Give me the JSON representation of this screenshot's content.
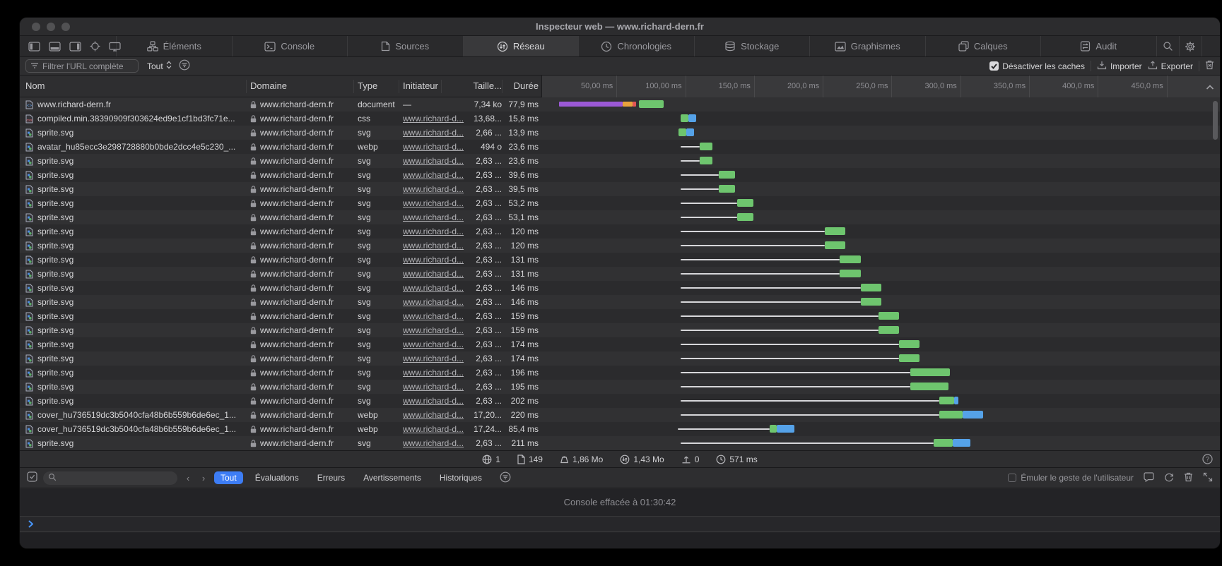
{
  "window": {
    "title": "Inspecteur web — www.richard-dern.fr"
  },
  "toolbar": {
    "layout_icons": [
      "pane-left",
      "pane-bottom",
      "pane-right",
      "crosshair",
      "monitor"
    ],
    "tabs": [
      {
        "label": "Éléments",
        "icon": "elements",
        "active": false
      },
      {
        "label": "Console",
        "icon": "consoletab",
        "active": false
      },
      {
        "label": "Sources",
        "icon": "sources",
        "active": false
      },
      {
        "label": "Réseau",
        "icon": "reseau",
        "active": true
      },
      {
        "label": "Chronologies",
        "icon": "chrono",
        "active": false
      },
      {
        "label": "Stockage",
        "icon": "stockage",
        "active": false
      },
      {
        "label": "Graphismes",
        "icon": "graphismes",
        "active": false
      },
      {
        "label": "Calques",
        "icon": "calques",
        "active": false
      },
      {
        "label": "Audit",
        "icon": "audit",
        "active": false
      }
    ]
  },
  "filter_bar": {
    "placeholder": "Filtrer l'URL complète",
    "scope": "Tout",
    "disable_caches_label": "Désactiver les caches",
    "import_label": "Importer",
    "export_label": "Exporter"
  },
  "network_table": {
    "columns": [
      "Nom",
      "Domaine",
      "Type",
      "Initiateur",
      "Taille...",
      "Durée"
    ],
    "rows": [
      {
        "name": "www.richard-dern.fr",
        "icon": "html",
        "domain": "www.richard-dern.fr",
        "type": "document",
        "initiator": "—",
        "size": "7,34 ko",
        "duration": "77,9 ms",
        "bar": {
          "line": null,
          "blocks": [
            [
              "purple",
              9,
              55,
              "mid"
            ],
            [
              "orange",
              55,
              62,
              "mid"
            ],
            [
              "red",
              62,
              65,
              "mid"
            ],
            [
              "green",
              67,
              85
            ]
          ]
        }
      },
      {
        "name": "compiled.min.38390909f303624ed9e1cf1bd3fc71e...",
        "icon": "css",
        "domain": "www.richard-dern.fr",
        "type": "css",
        "initiator": "www.richard-d...",
        "size": "13,68...",
        "duration": "15,8 ms",
        "bar": {
          "line": null,
          "blocks": [
            [
              "green",
              97,
              103
            ],
            [
              "blue",
              103,
              108.5
            ]
          ]
        }
      },
      {
        "name": "sprite.svg",
        "icon": "img",
        "domain": "www.richard-dern.fr",
        "type": "svg",
        "initiator": "www.richard-d...",
        "size": "2,66 ...",
        "duration": "13,9 ms",
        "bar": {
          "line": null,
          "blocks": [
            [
              "green",
              95.5,
              101
            ],
            [
              "blue",
              101,
              107
            ]
          ]
        }
      },
      {
        "name": "avatar_hu85ecc3e298728880b0bde2dcc4e5c230_...",
        "icon": "img",
        "domain": "www.richard-dern.fr",
        "type": "webp",
        "initiator": "www.richard-d...",
        "size": "494 o",
        "duration": "23,6 ms",
        "bar": {
          "line": [
            97,
            111
          ],
          "blocks": [
            [
              "green",
              111,
              120.5
            ]
          ]
        }
      },
      {
        "name": "sprite.svg",
        "icon": "img",
        "domain": "www.richard-dern.fr",
        "type": "svg",
        "initiator": "www.richard-d...",
        "size": "2,63 ...",
        "duration": "23,6 ms",
        "bar": {
          "line": [
            97,
            111
          ],
          "blocks": [
            [
              "green",
              111,
              120.5
            ]
          ]
        }
      },
      {
        "name": "sprite.svg",
        "icon": "img",
        "domain": "www.richard-dern.fr",
        "type": "svg",
        "initiator": "www.richard-d...",
        "size": "2,63 ...",
        "duration": "39,6 ms",
        "bar": {
          "line": [
            97,
            125
          ],
          "blocks": [
            [
              "green",
              125,
              136.5
            ]
          ]
        }
      },
      {
        "name": "sprite.svg",
        "icon": "img",
        "domain": "www.richard-dern.fr",
        "type": "svg",
        "initiator": "www.richard-d...",
        "size": "2,63 ...",
        "duration": "39,5 ms",
        "bar": {
          "line": [
            97,
            125
          ],
          "blocks": [
            [
              "green",
              125,
              136.5
            ]
          ]
        }
      },
      {
        "name": "sprite.svg",
        "icon": "img",
        "domain": "www.richard-dern.fr",
        "type": "svg",
        "initiator": "www.richard-d...",
        "size": "2,63 ...",
        "duration": "53,2 ms",
        "bar": {
          "line": [
            97,
            138
          ],
          "blocks": [
            [
              "green",
              138,
              150
            ]
          ]
        }
      },
      {
        "name": "sprite.svg",
        "icon": "img",
        "domain": "www.richard-dern.fr",
        "type": "svg",
        "initiator": "www.richard-d...",
        "size": "2,63 ...",
        "duration": "53,1 ms",
        "bar": {
          "line": [
            97,
            138
          ],
          "blocks": [
            [
              "green",
              138,
              150
            ]
          ]
        }
      },
      {
        "name": "sprite.svg",
        "icon": "img",
        "domain": "www.richard-dern.fr",
        "type": "svg",
        "initiator": "www.richard-d...",
        "size": "2,63 ...",
        "duration": "120 ms",
        "bar": {
          "line": [
            97,
            202
          ],
          "blocks": [
            [
              "green",
              202,
              217
            ]
          ]
        }
      },
      {
        "name": "sprite.svg",
        "icon": "img",
        "domain": "www.richard-dern.fr",
        "type": "svg",
        "initiator": "www.richard-d...",
        "size": "2,63 ...",
        "duration": "120 ms",
        "bar": {
          "line": [
            97,
            202
          ],
          "blocks": [
            [
              "green",
              202,
              217
            ]
          ]
        }
      },
      {
        "name": "sprite.svg",
        "icon": "img",
        "domain": "www.richard-dern.fr",
        "type": "svg",
        "initiator": "www.richard-d...",
        "size": "2,63 ...",
        "duration": "131 ms",
        "bar": {
          "line": [
            97,
            213
          ],
          "blocks": [
            [
              "green",
              213,
              228
            ]
          ]
        }
      },
      {
        "name": "sprite.svg",
        "icon": "img",
        "domain": "www.richard-dern.fr",
        "type": "svg",
        "initiator": "www.richard-d...",
        "size": "2,63 ...",
        "duration": "131 ms",
        "bar": {
          "line": [
            97,
            213
          ],
          "blocks": [
            [
              "green",
              213,
              228
            ]
          ]
        }
      },
      {
        "name": "sprite.svg",
        "icon": "img",
        "domain": "www.richard-dern.fr",
        "type": "svg",
        "initiator": "www.richard-d...",
        "size": "2,63 ...",
        "duration": "146 ms",
        "bar": {
          "line": [
            97,
            228
          ],
          "blocks": [
            [
              "green",
              228,
              243
            ]
          ]
        }
      },
      {
        "name": "sprite.svg",
        "icon": "img",
        "domain": "www.richard-dern.fr",
        "type": "svg",
        "initiator": "www.richard-d...",
        "size": "2,63 ...",
        "duration": "146 ms",
        "bar": {
          "line": [
            97,
            228
          ],
          "blocks": [
            [
              "green",
              228,
              243
            ]
          ]
        }
      },
      {
        "name": "sprite.svg",
        "icon": "img",
        "domain": "www.richard-dern.fr",
        "type": "svg",
        "initiator": "www.richard-d...",
        "size": "2,63 ...",
        "duration": "159 ms",
        "bar": {
          "line": [
            97,
            241
          ],
          "blocks": [
            [
              "green",
              241,
              256
            ]
          ]
        }
      },
      {
        "name": "sprite.svg",
        "icon": "img",
        "domain": "www.richard-dern.fr",
        "type": "svg",
        "initiator": "www.richard-d...",
        "size": "2,63 ...",
        "duration": "159 ms",
        "bar": {
          "line": [
            97,
            241
          ],
          "blocks": [
            [
              "green",
              241,
              256
            ]
          ]
        }
      },
      {
        "name": "sprite.svg",
        "icon": "img",
        "domain": "www.richard-dern.fr",
        "type": "svg",
        "initiator": "www.richard-d...",
        "size": "2,63 ...",
        "duration": "174 ms",
        "bar": {
          "line": [
            97,
            256
          ],
          "blocks": [
            [
              "green",
              256,
              271
            ]
          ]
        }
      },
      {
        "name": "sprite.svg",
        "icon": "img",
        "domain": "www.richard-dern.fr",
        "type": "svg",
        "initiator": "www.richard-d...",
        "size": "2,63 ...",
        "duration": "174 ms",
        "bar": {
          "line": [
            97,
            256
          ],
          "blocks": [
            [
              "green",
              256,
              271
            ]
          ]
        }
      },
      {
        "name": "sprite.svg",
        "icon": "img",
        "domain": "www.richard-dern.fr",
        "type": "svg",
        "initiator": "www.richard-d...",
        "size": "2,63 ...",
        "duration": "196 ms",
        "bar": {
          "line": [
            97,
            264
          ],
          "blocks": [
            [
              "green",
              264,
              293
            ]
          ]
        }
      },
      {
        "name": "sprite.svg",
        "icon": "img",
        "domain": "www.richard-dern.fr",
        "type": "svg",
        "initiator": "www.richard-d...",
        "size": "2,63 ...",
        "duration": "195 ms",
        "bar": {
          "line": [
            97,
            264
          ],
          "blocks": [
            [
              "green",
              264,
              292
            ]
          ]
        }
      },
      {
        "name": "sprite.svg",
        "icon": "img",
        "domain": "www.richard-dern.fr",
        "type": "svg",
        "initiator": "www.richard-d...",
        "size": "2,63 ...",
        "duration": "202 ms",
        "bar": {
          "line": [
            97,
            285
          ],
          "blocks": [
            [
              "green",
              285,
              296
            ],
            [
              "blue",
              296,
              299
            ]
          ]
        }
      },
      {
        "name": "cover_hu736519dc3b5040cfa48b6b559b6de6ec_1...",
        "icon": "img",
        "domain": "www.richard-dern.fr",
        "type": "webp",
        "initiator": "www.richard-d...",
        "size": "17,20...",
        "duration": "220 ms",
        "bar": {
          "line": [
            97,
            285
          ],
          "blocks": [
            [
              "green",
              285,
              302
            ],
            [
              "blue",
              302,
              317
            ]
          ]
        }
      },
      {
        "name": "cover_hu736519dc3b5040cfa48b6b559b6de6ec_1...",
        "icon": "img",
        "domain": "www.richard-dern.fr",
        "type": "webp",
        "initiator": "www.richard-d...",
        "size": "17,24...",
        "duration": "85,4 ms",
        "bar": {
          "line": [
            95,
            162
          ],
          "blocks": [
            [
              "green",
              162,
              167
            ],
            [
              "blue",
              167,
              180
            ]
          ]
        }
      },
      {
        "name": "sprite.svg",
        "icon": "img",
        "domain": "www.richard-dern.fr",
        "type": "svg",
        "initiator": "www.richard-d...",
        "size": "2,63 ...",
        "duration": "211 ms",
        "bar": {
          "line": [
            97,
            281
          ],
          "blocks": [
            [
              "green",
              281,
              295
            ],
            [
              "blue",
              295,
              308
            ]
          ]
        }
      }
    ]
  },
  "waterfall": {
    "t_min_ms": -4.1,
    "t_max_ms": 489.2,
    "ticks": [
      {
        "t": 50,
        "label": "50,00 ms"
      },
      {
        "t": 100,
        "label": "100,00 ms"
      },
      {
        "t": 150,
        "label": "150,0 ms"
      },
      {
        "t": 200,
        "label": "200,0 ms"
      },
      {
        "t": 250,
        "label": "250,0 ms"
      },
      {
        "t": 300,
        "label": "300,0 ms"
      },
      {
        "t": 350,
        "label": "350,0 ms"
      },
      {
        "t": 400,
        "label": "400,0 ms"
      },
      {
        "t": 450,
        "label": "450,0 ms"
      }
    ],
    "colors": {
      "green": "#6ec56e",
      "blue": "#55a2e8",
      "purple": "#9b59d6",
      "orange": "#e8a33d",
      "red": "#e25555"
    }
  },
  "summary": {
    "stats": [
      {
        "icon": "globe",
        "value": "1"
      },
      {
        "icon": "page",
        "value": "149"
      },
      {
        "icon": "weight",
        "value": "1,86 Mo"
      },
      {
        "icon": "transfer",
        "value": "1,43 Mo"
      },
      {
        "icon": "upload",
        "value": "0"
      },
      {
        "icon": "clock",
        "value": "571 ms"
      }
    ]
  },
  "console": {
    "filters": [
      {
        "label": "Tout",
        "active": true
      },
      {
        "label": "Évaluations",
        "active": false
      },
      {
        "label": "Erreurs",
        "active": false
      },
      {
        "label": "Avertissements",
        "active": false
      },
      {
        "label": "Historiques",
        "active": false
      }
    ],
    "emulate_label": "Émuler le geste de l'utilisateur",
    "message": "Console effacée à 01:30:42"
  }
}
